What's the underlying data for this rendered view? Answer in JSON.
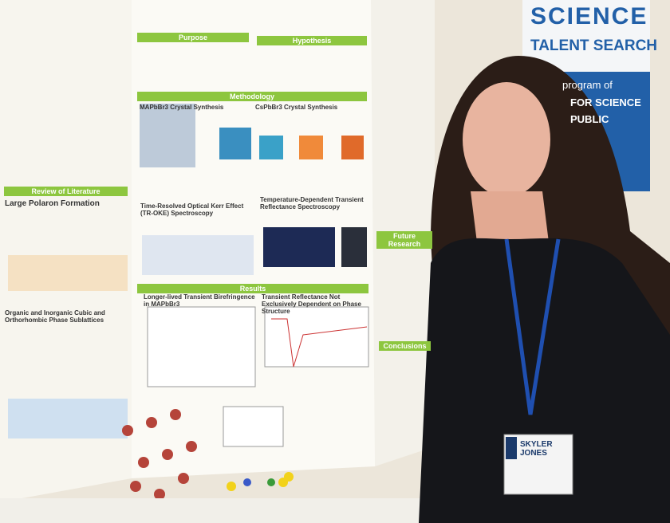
{
  "banner": {
    "title": "SCIENCE",
    "subtitle": "TALENT SEARCH",
    "lines": [
      "program of",
      "FOR SCIENCE",
      "PUBLIC"
    ]
  },
  "poster": {
    "left": {
      "headers": [
        "Review of Literature"
      ],
      "subheads": [
        "Large Polaron Formation",
        "Organic and Inorganic Cubic and Orthorhombic Phase Sublattices"
      ]
    },
    "center": {
      "headers": [
        "Purpose",
        "Hypothesis",
        "Methodology",
        "Results"
      ],
      "subheads": [
        "MAPbBr3 Crystal Synthesis",
        "CsPbBr3 Crystal Synthesis",
        "Time-Resolved Optical Kerr Effect (TR-OKE) Spectroscopy",
        "Temperature-Dependent Transient Reflectance Spectroscopy",
        "Longer-lived Transient Birefringence in MAPbBr3",
        "Transient Reflectance Not Exclusively Dependent on Phase Structure"
      ]
    },
    "right": {
      "headers": [
        "Future Research",
        "Conclusions"
      ]
    }
  },
  "badge": {
    "name": "SKYLER JONES"
  }
}
